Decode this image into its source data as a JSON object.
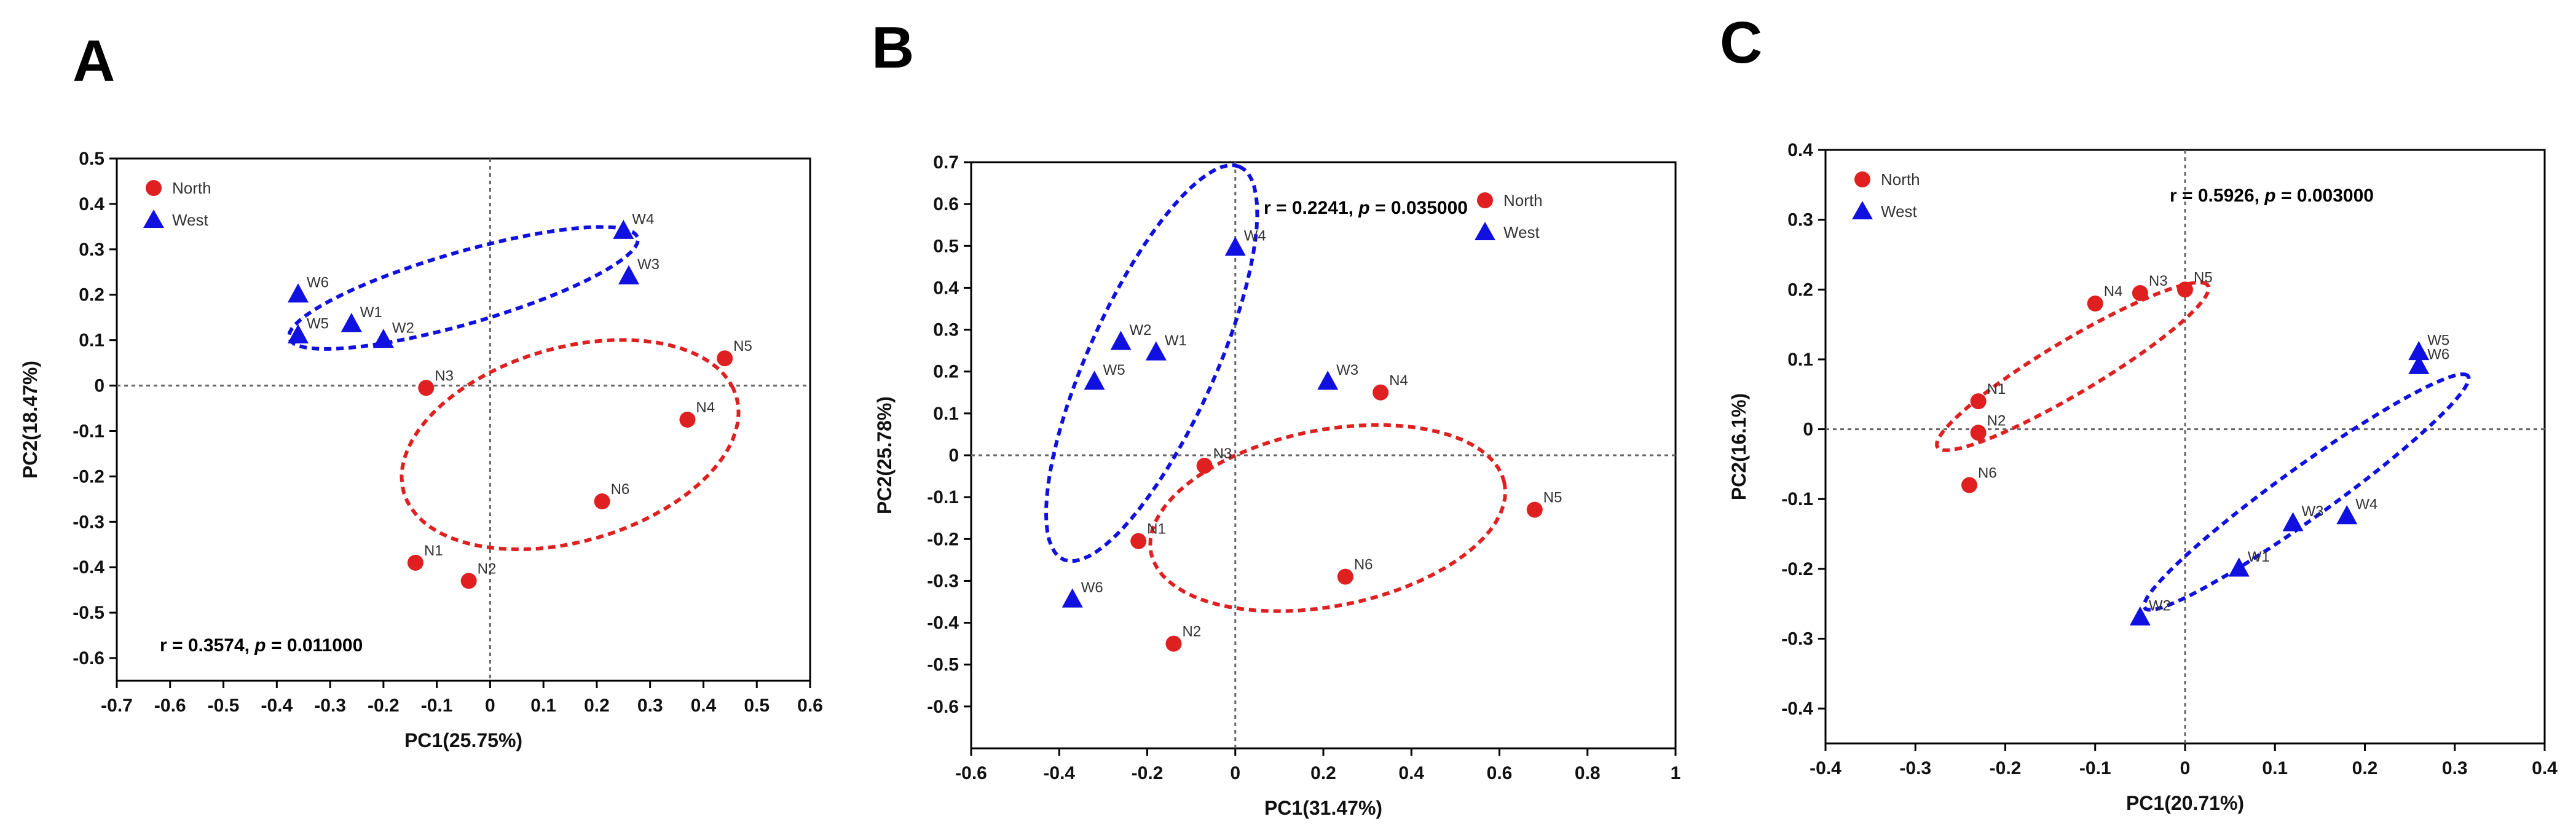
{
  "chart_data": [
    {
      "type": "scatter",
      "panel": "A",
      "xlabel": "PC1(25.75%)",
      "ylabel": "PC2(18.47%)",
      "xlim": [
        -0.7,
        0.6
      ],
      "ylim": [
        -0.65,
        0.5
      ],
      "xticks": [
        -0.7,
        -0.6,
        -0.5,
        -0.4,
        -0.3,
        -0.2,
        -0.1,
        0,
        0.1,
        0.2,
        0.3,
        0.4,
        0.5,
        0.6
      ],
      "yticks": [
        -0.6,
        -0.5,
        -0.4,
        -0.3,
        -0.2,
        -0.1,
        0,
        0.1,
        0.2,
        0.3,
        0.4,
        0.5
      ],
      "legend_position": "top-left",
      "stat_position": "bottom-left",
      "stat": {
        "r": "r = 0.3574, ",
        "p_label": "p",
        "p": " = 0.011000"
      },
      "series": [
        {
          "name": "North",
          "marker": "circle",
          "color": "#e02020",
          "points": [
            {
              "label": "N1",
              "x": -0.14,
              "y": -0.39
            },
            {
              "label": "N2",
              "x": -0.04,
              "y": -0.43
            },
            {
              "label": "N3",
              "x": -0.12,
              "y": -0.005
            },
            {
              "label": "N4",
              "x": 0.37,
              "y": -0.075
            },
            {
              "label": "N5",
              "x": 0.44,
              "y": 0.06
            },
            {
              "label": "N6",
              "x": 0.21,
              "y": -0.255
            }
          ],
          "ellipse": {
            "cx": 0.15,
            "cy": -0.13,
            "rx": 0.33,
            "ry": 0.21,
            "angle": 22
          }
        },
        {
          "name": "West",
          "marker": "triangle",
          "color": "#1010e0",
          "points": [
            {
              "label": "W1",
              "x": -0.26,
              "y": 0.135
            },
            {
              "label": "W2",
              "x": -0.2,
              "y": 0.1
            },
            {
              "label": "W3",
              "x": 0.26,
              "y": 0.24
            },
            {
              "label": "W4",
              "x": 0.25,
              "y": 0.34
            },
            {
              "label": "W5",
              "x": -0.36,
              "y": 0.11
            },
            {
              "label": "W6",
              "x": -0.36,
              "y": 0.2
            }
          ],
          "ellipse": {
            "cx": -0.05,
            "cy": 0.215,
            "rx": 0.345,
            "ry": 0.078,
            "angle": 19
          }
        }
      ]
    },
    {
      "type": "scatter",
      "panel": "B",
      "xlabel": "PC1(31.47%)",
      "ylabel": "PC2(25.78%)",
      "xlim": [
        -0.6,
        1.0
      ],
      "ylim": [
        -0.7,
        0.7
      ],
      "xticks": [
        -0.6,
        -0.4,
        -0.2,
        0,
        0.2,
        0.4,
        0.6,
        0.8,
        1
      ],
      "yticks": [
        -0.6,
        -0.5,
        -0.4,
        -0.3,
        -0.2,
        -0.1,
        0,
        0.1,
        0.2,
        0.3,
        0.4,
        0.5,
        0.6,
        0.7
      ],
      "legend_position": "top-right",
      "stat_position": "top-right",
      "stat": {
        "r": "r = 0.2241, ",
        "p_label": "p",
        "p": " = 0.035000"
      },
      "series": [
        {
          "name": "North",
          "marker": "circle",
          "color": "#e02020",
          "points": [
            {
              "label": "N1",
              "x": -0.22,
              "y": -0.205
            },
            {
              "label": "N2",
              "x": -0.14,
              "y": -0.45
            },
            {
              "label": "N3",
              "x": -0.07,
              "y": -0.025
            },
            {
              "label": "N4",
              "x": 0.33,
              "y": 0.15
            },
            {
              "label": "N5",
              "x": 0.68,
              "y": -0.13
            },
            {
              "label": "N6",
              "x": 0.25,
              "y": -0.29
            }
          ],
          "ellipse": {
            "cx": 0.21,
            "cy": -0.15,
            "rx": 0.41,
            "ry": 0.21,
            "angle": 12
          }
        },
        {
          "name": "West",
          "marker": "triangle",
          "color": "#1010e0",
          "points": [
            {
              "label": "W1",
              "x": -0.18,
              "y": 0.245
            },
            {
              "label": "W2",
              "x": -0.26,
              "y": 0.27
            },
            {
              "label": "W3",
              "x": 0.21,
              "y": 0.175
            },
            {
              "label": "W4",
              "x": 0.0,
              "y": 0.495
            },
            {
              "label": "W5",
              "x": -0.32,
              "y": 0.175
            },
            {
              "label": "W6",
              "x": -0.37,
              "y": -0.345
            }
          ],
          "ellipse": {
            "cx": -0.19,
            "cy": 0.22,
            "rx": 0.51,
            "ry": 0.145,
            "angle": 67
          }
        }
      ]
    },
    {
      "type": "scatter",
      "panel": "C",
      "xlabel": "PC1(20.71%)",
      "ylabel": "PC2(16.1%)",
      "xlim": [
        -0.4,
        0.4
      ],
      "ylim": [
        -0.45,
        0.4
      ],
      "xticks": [
        -0.4,
        -0.3,
        -0.2,
        -0.1,
        0,
        0.1,
        0.2,
        0.3,
        0.4
      ],
      "yticks": [
        -0.4,
        -0.3,
        -0.2,
        -0.1,
        0,
        0.1,
        0.2,
        0.3,
        0.4
      ],
      "legend_position": "top-left",
      "stat_position": "top-right",
      "stat": {
        "r": "r = 0.5926, ",
        "p_label": "p",
        "p": " = 0.003000"
      },
      "series": [
        {
          "name": "North",
          "marker": "circle",
          "color": "#e02020",
          "points": [
            {
              "label": "N1",
              "x": -0.23,
              "y": 0.04
            },
            {
              "label": "N2",
              "x": -0.23,
              "y": -0.005
            },
            {
              "label": "N3",
              "x": -0.05,
              "y": 0.195
            },
            {
              "label": "N4",
              "x": -0.1,
              "y": 0.18
            },
            {
              "label": "N5",
              "x": 0.0,
              "y": 0.2
            },
            {
              "label": "N6",
              "x": -0.24,
              "y": -0.08
            }
          ],
          "ellipse": {
            "cx": -0.125,
            "cy": 0.09,
            "rx": 0.19,
            "ry": 0.035,
            "angle": 38
          }
        },
        {
          "name": "West",
          "marker": "triangle",
          "color": "#1010e0",
          "points": [
            {
              "label": "W1",
              "x": 0.06,
              "y": -0.2
            },
            {
              "label": "W2",
              "x": -0.05,
              "y": -0.27
            },
            {
              "label": "W3",
              "x": 0.12,
              "y": -0.135
            },
            {
              "label": "W4",
              "x": 0.18,
              "y": -0.125
            },
            {
              "label": "W5",
              "x": 0.26,
              "y": 0.11
            },
            {
              "label": "W6",
              "x": 0.26,
              "y": 0.09
            }
          ],
          "ellipse": {
            "cx": 0.135,
            "cy": -0.09,
            "rx": 0.245,
            "ry": 0.033,
            "angle": 43
          }
        }
      ]
    }
  ]
}
